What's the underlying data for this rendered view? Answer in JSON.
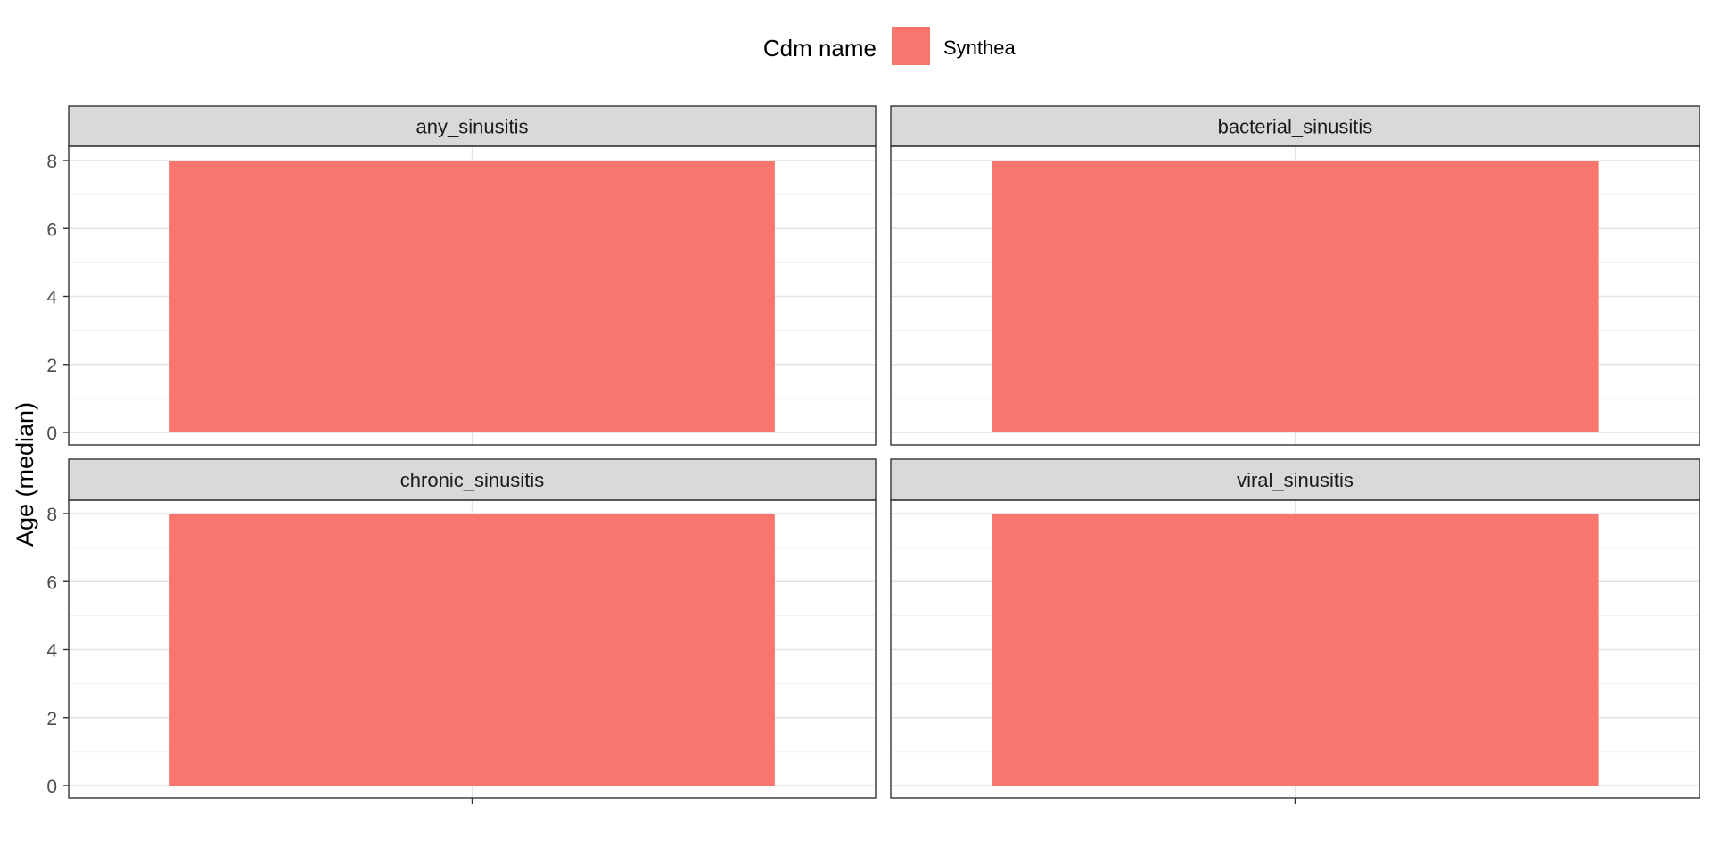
{
  "chart_data": {
    "type": "bar",
    "ylabel": "Age (median)",
    "xlabel": "",
    "ylim": [
      0,
      8
    ],
    "y_ticks": [
      0,
      2,
      4,
      6,
      8
    ],
    "grid": true,
    "legend": {
      "title": "Cdm name",
      "position": "top",
      "entries": [
        {
          "label": "Synthea",
          "color": "#F8766D"
        }
      ]
    },
    "panels": [
      {
        "title": "any_sinusitis",
        "series": [
          {
            "name": "Synthea",
            "value": 8
          }
        ]
      },
      {
        "title": "bacterial_sinusitis",
        "series": [
          {
            "name": "Synthea",
            "value": 8
          }
        ]
      },
      {
        "title": "chronic_sinusitis",
        "series": [
          {
            "name": "Synthea",
            "value": 8
          }
        ]
      },
      {
        "title": "viral_sinusitis",
        "series": [
          {
            "name": "Synthea",
            "value": 8
          }
        ]
      }
    ]
  }
}
